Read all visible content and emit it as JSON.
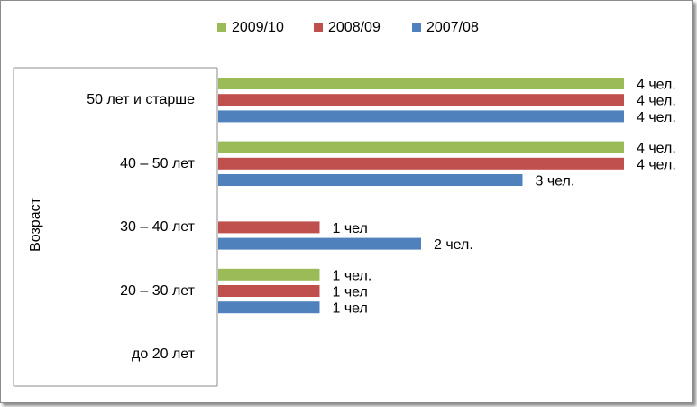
{
  "chart_data": {
    "type": "bar",
    "orientation": "horizontal",
    "ylabel": "Возраст",
    "categories": [
      "50 лет и старше",
      "40 – 50 лет",
      "30 – 40 лет",
      "20 – 30 лет",
      "до 20 лет"
    ],
    "series": [
      {
        "name": "2009/10",
        "color": "#9bbb59",
        "values": [
          4,
          4,
          null,
          1,
          null
        ],
        "labels": [
          "4 чел.",
          "4 чел.",
          "",
          "1 чел.",
          ""
        ]
      },
      {
        "name": "2008/09",
        "color": "#c0504d",
        "values": [
          4,
          4,
          1,
          1,
          null
        ],
        "labels": [
          "4 чел.",
          "4 чел.",
          "1 чел",
          "1 чел",
          ""
        ]
      },
      {
        "name": "2007/08",
        "color": "#4f81bd",
        "values": [
          4,
          3,
          2,
          1,
          null
        ],
        "labels": [
          "4 чел.",
          "3  чел.",
          "2 чел.",
          "1 чел",
          ""
        ]
      }
    ],
    "xlim": [
      0,
      4
    ],
    "grid": false,
    "legend_position": "top"
  }
}
